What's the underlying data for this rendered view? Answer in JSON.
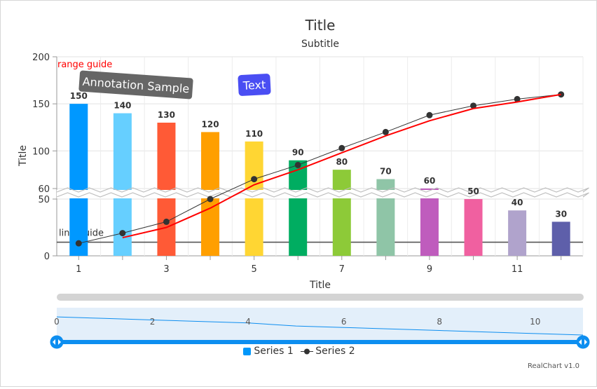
{
  "chart_data": {
    "type": "bar",
    "title": "Title",
    "subtitle": "Subtitle",
    "xlabel": "Title",
    "ylabel": "Title",
    "x": [
      1,
      2,
      3,
      4,
      5,
      6,
      7,
      8,
      9,
      10,
      11,
      12
    ],
    "x_tick_labels": [
      "1",
      "3",
      "5",
      "7",
      "9",
      "11"
    ],
    "y_tick_labels": [
      "0",
      "50",
      "60",
      "100",
      "150",
      "200"
    ],
    "ylim": [
      0,
      200
    ],
    "y_axis_break": [
      50,
      60
    ],
    "grid": true,
    "legend_position": "bottom",
    "series": [
      {
        "name": "Series 1",
        "type": "bar",
        "values": [
          150,
          140,
          130,
          120,
          110,
          90,
          80,
          70,
          60,
          50,
          40,
          30
        ],
        "colors": [
          "#0098ff",
          "#66cfff",
          "#ff5a36",
          "#ff9f00",
          "#ffd633",
          "#00ad61",
          "#8dca38",
          "#8fc5a7",
          "#bf5cbd",
          "#f060a0",
          "#b0a3cc",
          "#5e5faa"
        ]
      },
      {
        "name": "Series 2",
        "type": "line",
        "color": "#333333",
        "values": [
          11,
          20,
          30,
          50,
          70,
          85,
          103,
          120,
          138,
          148,
          155,
          160
        ]
      },
      {
        "type": "line",
        "color": "#ff0000",
        "values": [
          null,
          16,
          25,
          42,
          64,
          80,
          98,
          116,
          132,
          145,
          152,
          160
        ]
      }
    ],
    "annotations": [
      {
        "text": "range guide",
        "color": "#ff0000"
      },
      {
        "text": "Annotation Sample",
        "color": "#ffffff",
        "background": "#666666"
      },
      {
        "text": "Text",
        "color": "#ffffff",
        "background": "#4a4ef3"
      },
      {
        "text": "line guide",
        "value": 12,
        "color": "#555555"
      }
    ],
    "navigator": {
      "tick_labels": [
        "0",
        "2",
        "4",
        "6",
        "8",
        "10"
      ]
    }
  },
  "legend": {
    "items": [
      {
        "label": "Series 1"
      },
      {
        "label": "Series 2"
      }
    ]
  },
  "credit": "RealChart v1.0",
  "colors": {
    "bar_accent": "#0098ff",
    "navigator_fill": "#e3effa",
    "navigator_handle": "#0d8ef0"
  }
}
